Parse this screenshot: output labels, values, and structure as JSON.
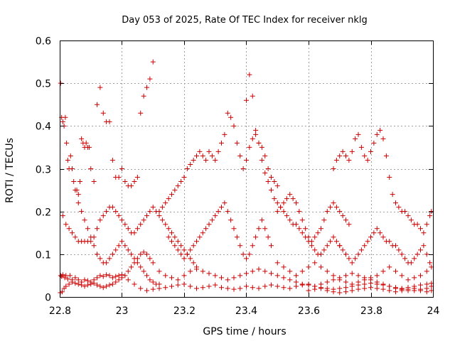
{
  "chart_data": {
    "type": "scatter",
    "title": "Day 053 of 2025, Rate Of TEC Index for receiver nklg",
    "xlabel": "GPS time / hours",
    "ylabel": "ROTI / TECUs",
    "xlim": [
      22.8,
      24.0
    ],
    "ylim": [
      0,
      0.6
    ],
    "xticks": [
      "22.8",
      "23",
      "23.2",
      "23.4",
      "23.6",
      "23.8",
      "24"
    ],
    "xtick_values": [
      22.8,
      23.0,
      23.2,
      23.4,
      23.6,
      23.8,
      24.0
    ],
    "yticks": [
      "0",
      "0.1",
      "0.2",
      "0.3",
      "0.4",
      "0.5",
      "0.6"
    ],
    "ytick_values": [
      0,
      0.1,
      0.2,
      0.3,
      0.4,
      0.5,
      0.6
    ],
    "grid": true,
    "marker": "plus",
    "color": "#cc0000",
    "series": [
      {
        "x": [
          22.803,
          22.806,
          22.81,
          22.816,
          22.82,
          22.826,
          22.833,
          22.84,
          22.85,
          22.86,
          22.87,
          22.88,
          22.89,
          22.9,
          22.91,
          22.92,
          22.93,
          22.94,
          22.95,
          22.96,
          22.97,
          22.98,
          22.99,
          23.0,
          23.02,
          23.04,
          23.06,
          23.08,
          23.1,
          23.12,
          23.14,
          23.16,
          23.18,
          23.2,
          23.22,
          23.24,
          23.26,
          23.28,
          23.3,
          23.32,
          23.34,
          23.36,
          23.38,
          23.4,
          23.42,
          23.44,
          23.46,
          23.48,
          23.5,
          23.52,
          23.54,
          23.56,
          23.58,
          23.6,
          23.62,
          23.64,
          23.66,
          23.68,
          23.7,
          23.72,
          23.74,
          23.76,
          23.78,
          23.8,
          23.82,
          23.84,
          23.86,
          23.88,
          23.9,
          23.92,
          23.94,
          23.96,
          23.98,
          23.995
        ],
        "y": [
          0.05,
          0.048,
          0.052,
          0.045,
          0.05,
          0.042,
          0.05,
          0.04,
          0.045,
          0.04,
          0.035,
          0.04,
          0.038,
          0.035,
          0.04,
          0.045,
          0.05,
          0.048,
          0.052,
          0.05,
          0.045,
          0.048,
          0.05,
          0.052,
          0.04,
          0.03,
          0.02,
          0.015,
          0.018,
          0.02,
          0.022,
          0.025,
          0.028,
          0.03,
          0.025,
          0.02,
          0.022,
          0.025,
          0.028,
          0.022,
          0.02,
          0.018,
          0.02,
          0.025,
          0.022,
          0.02,
          0.025,
          0.028,
          0.025,
          0.022,
          0.02,
          0.025,
          0.028,
          0.03,
          0.025,
          0.022,
          0.02,
          0.018,
          0.02,
          0.022,
          0.025,
          0.028,
          0.03,
          0.032,
          0.03,
          0.028,
          0.025,
          0.022,
          0.02,
          0.022,
          0.025,
          0.028,
          0.03,
          0.032
        ]
      },
      {
        "x": [
          22.802,
          22.808,
          22.814,
          22.82,
          22.83,
          22.84,
          22.85,
          22.86,
          22.87,
          22.88,
          22.89,
          22.9,
          22.91,
          22.92,
          22.93,
          22.94,
          22.95,
          22.96,
          22.97,
          22.98,
          22.99,
          23.0,
          23.01,
          23.02,
          23.03,
          23.04,
          23.05,
          23.06,
          23.07,
          23.08,
          23.09,
          23.1,
          23.12,
          23.14,
          23.16,
          23.18,
          23.2,
          23.22,
          23.24,
          23.26,
          23.28,
          23.3,
          23.32,
          23.34,
          23.36,
          23.38,
          23.4,
          23.42,
          23.44,
          23.46,
          23.48,
          23.5,
          23.52,
          23.54,
          23.56,
          23.58,
          23.6,
          23.62,
          23.64,
          23.66,
          23.68,
          23.7,
          23.72,
          23.74,
          23.76,
          23.78,
          23.8,
          23.82,
          23.84,
          23.86,
          23.88,
          23.9,
          23.92,
          23.94,
          23.96,
          23.98,
          23.995
        ],
        "y": [
          0.01,
          0.012,
          0.02,
          0.025,
          0.03,
          0.035,
          0.032,
          0.03,
          0.028,
          0.025,
          0.028,
          0.03,
          0.032,
          0.028,
          0.025,
          0.022,
          0.025,
          0.028,
          0.03,
          0.035,
          0.04,
          0.045,
          0.05,
          0.06,
          0.07,
          0.08,
          0.09,
          0.1,
          0.105,
          0.1,
          0.09,
          0.08,
          0.06,
          0.05,
          0.045,
          0.04,
          0.05,
          0.06,
          0.065,
          0.06,
          0.055,
          0.05,
          0.045,
          0.04,
          0.045,
          0.05,
          0.055,
          0.06,
          0.065,
          0.06,
          0.055,
          0.05,
          0.045,
          0.04,
          0.035,
          0.03,
          0.028,
          0.025,
          0.03,
          0.035,
          0.04,
          0.045,
          0.05,
          0.055,
          0.05,
          0.045,
          0.04,
          0.035,
          0.03,
          0.025,
          0.02,
          0.018,
          0.015,
          0.015,
          0.018,
          0.02,
          0.025
        ]
      },
      {
        "x": [
          22.803,
          22.806,
          22.81,
          22.814,
          22.818,
          22.822,
          22.826,
          22.83,
          22.835,
          22.84,
          22.845,
          22.85,
          22.855,
          22.86,
          22.865,
          22.87,
          22.875,
          22.88,
          22.885,
          22.89,
          22.895,
          22.9,
          22.91,
          22.92,
          22.93,
          22.94,
          22.95,
          22.96,
          22.97,
          22.98,
          22.99,
          23.0,
          23.01,
          23.02,
          23.03,
          23.04,
          23.05,
          23.06,
          23.07,
          23.08,
          23.09,
          23.1
        ],
        "y": [
          0.5,
          0.42,
          0.41,
          0.4,
          0.42,
          0.36,
          0.32,
          0.3,
          0.33,
          0.3,
          0.27,
          0.25,
          0.25,
          0.24,
          0.27,
          0.37,
          0.36,
          0.35,
          0.36,
          0.35,
          0.35,
          0.3,
          0.27,
          0.45,
          0.49,
          0.43,
          0.41,
          0.41,
          0.32,
          0.28,
          0.28,
          0.3,
          0.27,
          0.26,
          0.26,
          0.27,
          0.28,
          0.43,
          0.47,
          0.49,
          0.51,
          0.55
        ]
      },
      {
        "x": [
          22.81,
          22.82,
          22.83,
          22.84,
          22.85,
          22.86,
          22.87,
          22.88,
          22.89,
          22.9,
          22.91,
          22.92,
          22.93,
          22.94,
          22.95,
          22.96,
          22.97,
          22.98,
          22.99,
          23.0,
          23.01,
          23.02,
          23.03,
          23.04,
          23.05,
          23.06,
          23.07,
          23.08,
          23.09,
          23.1,
          23.11,
          23.12,
          23.13,
          23.14,
          23.15,
          23.16,
          23.17,
          23.18,
          23.19,
          23.2,
          23.21,
          23.22,
          23.23,
          23.24
        ],
        "y": [
          0.19,
          0.17,
          0.16,
          0.15,
          0.14,
          0.13,
          0.13,
          0.13,
          0.13,
          0.13,
          0.14,
          0.16,
          0.18,
          0.19,
          0.2,
          0.21,
          0.21,
          0.2,
          0.19,
          0.18,
          0.17,
          0.16,
          0.15,
          0.15,
          0.16,
          0.17,
          0.18,
          0.19,
          0.2,
          0.21,
          0.2,
          0.19,
          0.18,
          0.17,
          0.16,
          0.15,
          0.14,
          0.13,
          0.12,
          0.11,
          0.1,
          0.09,
          0.08,
          0.07
        ]
      },
      {
        "x": [
          22.86,
          22.87,
          22.88,
          22.89,
          22.9,
          22.91,
          22.92,
          22.93,
          22.94,
          22.95,
          22.96,
          22.97,
          22.98,
          22.99,
          23.0,
          23.01,
          23.02,
          23.03,
          23.04,
          23.05,
          23.06,
          23.07,
          23.08,
          23.09,
          23.1,
          23.11,
          23.12
        ],
        "y": [
          0.22,
          0.2,
          0.18,
          0.16,
          0.14,
          0.12,
          0.1,
          0.09,
          0.08,
          0.08,
          0.09,
          0.1,
          0.11,
          0.12,
          0.13,
          0.12,
          0.11,
          0.1,
          0.09,
          0.08,
          0.07,
          0.06,
          0.05,
          0.04,
          0.035,
          0.03,
          0.03
        ]
      },
      {
        "x": [
          23.12,
          23.13,
          23.14,
          23.15,
          23.16,
          23.17,
          23.18,
          23.19,
          23.2,
          23.21,
          23.22,
          23.23,
          23.24,
          23.25,
          23.26,
          23.27,
          23.28,
          23.29,
          23.3,
          23.31,
          23.32,
          23.33,
          23.34,
          23.35,
          23.36,
          23.37,
          23.38,
          23.39,
          23.4,
          23.41,
          23.42,
          23.43,
          23.44,
          23.45,
          23.46,
          23.47,
          23.48,
          23.49,
          23.5
        ],
        "y": [
          0.2,
          0.21,
          0.22,
          0.23,
          0.24,
          0.25,
          0.26,
          0.27,
          0.28,
          0.3,
          0.31,
          0.32,
          0.33,
          0.34,
          0.33,
          0.32,
          0.34,
          0.33,
          0.32,
          0.34,
          0.36,
          0.38,
          0.43,
          0.42,
          0.4,
          0.36,
          0.33,
          0.3,
          0.32,
          0.35,
          0.37,
          0.38,
          0.36,
          0.35,
          0.33,
          0.3,
          0.28,
          0.27,
          0.26
        ]
      },
      {
        "x": [
          23.15,
          23.16,
          23.17,
          23.18,
          23.19,
          23.2,
          23.21,
          23.22,
          23.23,
          23.24,
          23.25,
          23.26,
          23.27,
          23.28,
          23.29,
          23.3,
          23.31,
          23.32,
          23.33,
          23.34,
          23.35,
          23.36,
          23.37,
          23.38,
          23.39,
          23.4,
          23.41,
          23.42,
          23.43,
          23.44,
          23.45,
          23.46,
          23.47,
          23.48
        ],
        "y": [
          0.14,
          0.13,
          0.12,
          0.11,
          0.1,
          0.09,
          0.1,
          0.11,
          0.12,
          0.13,
          0.14,
          0.15,
          0.16,
          0.17,
          0.18,
          0.19,
          0.2,
          0.21,
          0.22,
          0.2,
          0.18,
          0.16,
          0.14,
          0.12,
          0.1,
          0.09,
          0.1,
          0.12,
          0.14,
          0.16,
          0.18,
          0.16,
          0.14,
          0.12
        ]
      },
      {
        "x": [
          23.4,
          23.41,
          23.42,
          23.43,
          23.44,
          23.45,
          23.46,
          23.47,
          23.48,
          23.49,
          23.5,
          23.51,
          23.52,
          23.53,
          23.54,
          23.55,
          23.56,
          23.57,
          23.58,
          23.59,
          23.6,
          23.61,
          23.62,
          23.63,
          23.64,
          23.65,
          23.66,
          23.67,
          23.68,
          23.69,
          23.7
        ],
        "y": [
          0.46,
          0.52,
          0.47,
          0.39,
          0.36,
          0.32,
          0.29,
          0.27,
          0.25,
          0.23,
          0.22,
          0.21,
          0.2,
          0.19,
          0.18,
          0.17,
          0.17,
          0.16,
          0.15,
          0.14,
          0.13,
          0.12,
          0.11,
          0.1,
          0.1,
          0.11,
          0.12,
          0.13,
          0.14,
          0.13,
          0.12
        ]
      },
      {
        "x": [
          23.5,
          23.51,
          23.52,
          23.53,
          23.54,
          23.55,
          23.56,
          23.57,
          23.58,
          23.59,
          23.6,
          23.61,
          23.62,
          23.63,
          23.64,
          23.65,
          23.66,
          23.67,
          23.68,
          23.69,
          23.7,
          23.71,
          23.72,
          23.73
        ],
        "y": [
          0.2,
          0.21,
          0.22,
          0.23,
          0.24,
          0.23,
          0.22,
          0.2,
          0.18,
          0.16,
          0.14,
          0.13,
          0.14,
          0.15,
          0.16,
          0.18,
          0.2,
          0.21,
          0.22,
          0.21,
          0.2,
          0.19,
          0.18,
          0.17
        ]
      },
      {
        "x": [
          23.68,
          23.69,
          23.7,
          23.71,
          23.72,
          23.73,
          23.74,
          23.75,
          23.76,
          23.77,
          23.78,
          23.79,
          23.8,
          23.81,
          23.82,
          23.83,
          23.84,
          23.85,
          23.86,
          23.87,
          23.88,
          23.89,
          23.9,
          23.91,
          23.92,
          23.93,
          23.94,
          23.95,
          23.96,
          23.97,
          23.98,
          23.99,
          23.995
        ],
        "y": [
          0.3,
          0.32,
          0.33,
          0.34,
          0.33,
          0.32,
          0.34,
          0.37,
          0.38,
          0.35,
          0.33,
          0.32,
          0.34,
          0.36,
          0.38,
          0.39,
          0.37,
          0.33,
          0.28,
          0.24,
          0.22,
          0.21,
          0.2,
          0.2,
          0.19,
          0.18,
          0.17,
          0.17,
          0.16,
          0.15,
          0.17,
          0.19,
          0.2
        ]
      },
      {
        "x": [
          23.7,
          23.71,
          23.72,
          23.73,
          23.74,
          23.75,
          23.76,
          23.77,
          23.78,
          23.79,
          23.8,
          23.81,
          23.82,
          23.83,
          23.84,
          23.85,
          23.86,
          23.87,
          23.88,
          23.89,
          23.9,
          23.91,
          23.92,
          23.93,
          23.94,
          23.95,
          23.96,
          23.97,
          23.98,
          23.99
        ],
        "y": [
          0.12,
          0.11,
          0.1,
          0.09,
          0.08,
          0.09,
          0.1,
          0.11,
          0.12,
          0.13,
          0.14,
          0.15,
          0.16,
          0.15,
          0.14,
          0.13,
          0.13,
          0.12,
          0.12,
          0.11,
          0.1,
          0.09,
          0.08,
          0.08,
          0.09,
          0.1,
          0.11,
          0.12,
          0.1,
          0.08
        ]
      },
      {
        "x": [
          23.5,
          23.52,
          23.54,
          23.56,
          23.58,
          23.6,
          23.62,
          23.64,
          23.66,
          23.68,
          23.7,
          23.72,
          23.74,
          23.76,
          23.78,
          23.8,
          23.82,
          23.84,
          23.86,
          23.88,
          23.9,
          23.92,
          23.94,
          23.96,
          23.98,
          23.995
        ],
        "y": [
          0.08,
          0.07,
          0.06,
          0.05,
          0.06,
          0.07,
          0.08,
          0.07,
          0.06,
          0.05,
          0.04,
          0.035,
          0.03,
          0.035,
          0.04,
          0.045,
          0.05,
          0.06,
          0.07,
          0.06,
          0.05,
          0.04,
          0.045,
          0.05,
          0.06,
          0.07
        ]
      },
      {
        "x": [
          23.6,
          23.62,
          23.64,
          23.66,
          23.68,
          23.7,
          23.72,
          23.74,
          23.76,
          23.78,
          23.8,
          23.82,
          23.84,
          23.86,
          23.88,
          23.9,
          23.92,
          23.94,
          23.96,
          23.98,
          23.995
        ],
        "y": [
          0.015,
          0.018,
          0.02,
          0.015,
          0.012,
          0.01,
          0.012,
          0.015,
          0.018,
          0.02,
          0.022,
          0.02,
          0.018,
          0.015,
          0.012,
          0.015,
          0.018,
          0.02,
          0.015,
          0.012,
          0.015
        ]
      }
    ]
  }
}
